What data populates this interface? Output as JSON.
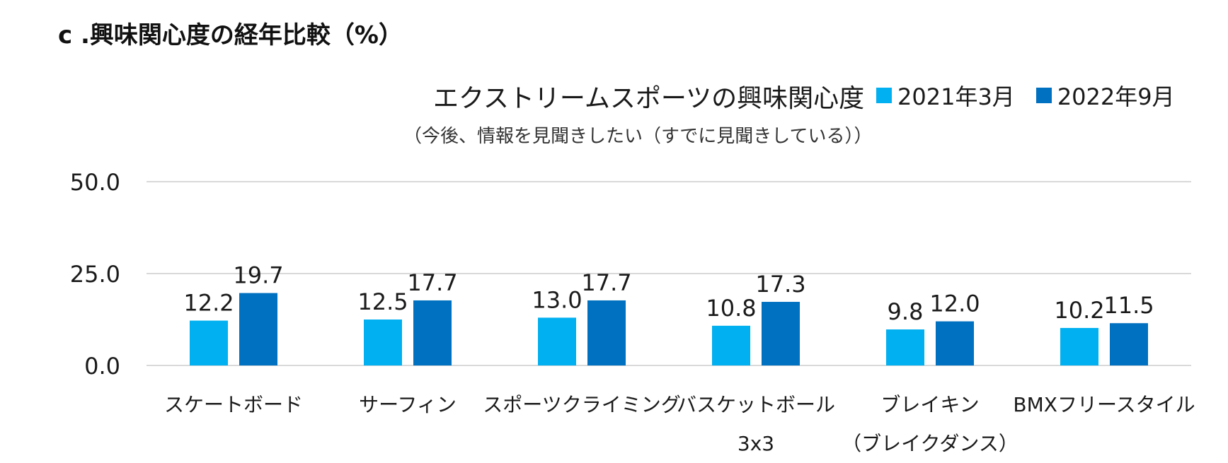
{
  "heading": "c .興味関心度の経年比較（%）",
  "chart_data": {
    "type": "bar",
    "title": "エクストリームスポーツの興味関心度",
    "subtitle": "（今後、情報を見聞きしたい（すでに見聞きしている））",
    "categories": [
      [
        "スケートボード"
      ],
      [
        "サーフィン"
      ],
      [
        "スポーツクライミング"
      ],
      [
        "バスケットボール",
        "3x3"
      ],
      [
        "ブレイキン",
        "（ブレイクダンス）"
      ],
      [
        "BMXフリースタイル"
      ]
    ],
    "series": [
      {
        "name": "2021年3月",
        "color": "#00b0f0",
        "values": [
          12.2,
          12.5,
          13.0,
          10.8,
          9.8,
          10.2
        ]
      },
      {
        "name": "2022年9月",
        "color": "#0070c0",
        "values": [
          19.7,
          17.7,
          17.7,
          17.3,
          12.0,
          11.5
        ]
      }
    ],
    "ylim": [
      0,
      50
    ],
    "yticks": [
      0.0,
      25.0,
      50.0
    ],
    "grid": true,
    "legend": "top-right",
    "gridColor": "#d9d9d9"
  }
}
